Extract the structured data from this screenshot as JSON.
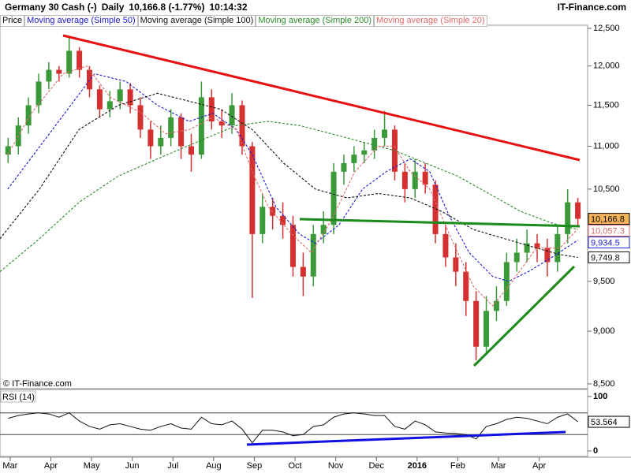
{
  "header": {
    "instrument": "Germany 30 Cash (-)",
    "period": "Daily",
    "quote": "10,166.8 (-1.77%)",
    "time": "10:14:32",
    "brand": "IT-Finance.com"
  },
  "watermark": "© IT-Finance.com",
  "chart_data": [
    {
      "type": "candlestick",
      "name": "Price",
      "up_color": "#3a9a3a",
      "down_color": "#d43030",
      "log": true,
      "ylim": [
        8456,
        12543
      ],
      "yticks": [
        {
          "value": 12500,
          "label": "12,500"
        },
        {
          "value": 12000,
          "label": "12,000"
        },
        {
          "value": 11500,
          "label": "11,500"
        },
        {
          "value": 11000,
          "label": "11,000"
        },
        {
          "value": 10500,
          "label": "10,500"
        },
        {
          "value": 9500,
          "label": "9,500"
        },
        {
          "value": 9000,
          "label": "9,000"
        },
        {
          "value": 8500,
          "label": "8,500"
        }
      ],
      "xlim": [
        -0.25,
        14.19
      ],
      "x": [
        -0.05,
        0.2,
        0.45,
        0.7,
        0.95,
        1.2,
        1.45,
        1.7,
        1.95,
        2.2,
        2.45,
        2.7,
        2.95,
        3.2,
        3.45,
        3.7,
        3.95,
        4.2,
        4.45,
        4.7,
        4.95,
        5.2,
        5.45,
        5.7,
        5.95,
        6.2,
        6.45,
        6.7,
        6.95,
        7.2,
        7.45,
        7.7,
        7.95,
        8.2,
        8.45,
        8.7,
        8.95,
        9.2,
        9.45,
        9.7,
        9.95,
        10.2,
        10.45,
        10.7,
        10.95,
        11.2,
        11.45,
        11.7,
        11.95,
        12.2,
        12.45,
        12.7,
        12.95,
        13.2,
        13.45,
        13.7,
        13.95
      ],
      "open": [
        10900,
        11000,
        11250,
        11500,
        11800,
        11950,
        11900,
        12200,
        11950,
        11700,
        11450,
        11550,
        11700,
        11500,
        11200,
        11000,
        11100,
        11350,
        11000,
        10900,
        11600,
        11300,
        11250,
        11500,
        11000,
        10000,
        10300,
        10200,
        10100,
        9650,
        9550,
        10000,
        10100,
        10700,
        10800,
        10900,
        10950,
        11100,
        11200,
        10700,
        10500,
        10700,
        10550,
        10000,
        9750,
        9600,
        9300,
        8850,
        9200,
        9300,
        9700,
        9800,
        9900,
        9850,
        9700,
        10000,
        10350
      ],
      "high": [
        11100,
        11350,
        11600,
        11900,
        12050,
        12000,
        12390,
        12250,
        12000,
        11750,
        11680,
        11800,
        11780,
        11600,
        11300,
        11250,
        11450,
        11400,
        11150,
        11800,
        11700,
        11450,
        11650,
        11560,
        11050,
        10450,
        10400,
        10350,
        10200,
        9800,
        10100,
        10250,
        10800,
        10900,
        11000,
        11050,
        11200,
        11430,
        11250,
        10800,
        10850,
        10800,
        10600,
        10100,
        9900,
        9700,
        9400,
        9350,
        9450,
        9800,
        9950,
        10050,
        10000,
        9950,
        10100,
        10500,
        10400
      ],
      "low": [
        10800,
        10900,
        11150,
        11400,
        11700,
        11800,
        11850,
        11850,
        11600,
        11350,
        11350,
        11450,
        11400,
        11100,
        10850,
        10900,
        11000,
        10850,
        10700,
        10850,
        11200,
        11100,
        11150,
        10900,
        9330,
        9900,
        10050,
        9950,
        9550,
        9350,
        9450,
        9900,
        10000,
        10550,
        10700,
        10800,
        10850,
        11000,
        10600,
        10350,
        10400,
        10450,
        9900,
        9650,
        9450,
        9150,
        8720,
        8800,
        9100,
        9250,
        9600,
        9700,
        9700,
        9550,
        9600,
        9900,
        10080
      ],
      "close": [
        11000,
        11250,
        11500,
        11800,
        11950,
        11900,
        12200,
        11950,
        11700,
        11450,
        11550,
        11700,
        11500,
        11200,
        11000,
        11100,
        11350,
        11000,
        10900,
        11600,
        11300,
        11250,
        11500,
        11000,
        10000,
        10300,
        10200,
        10100,
        9650,
        9550,
        10000,
        10100,
        10700,
        10800,
        10900,
        10950,
        11100,
        11200,
        10700,
        10500,
        10700,
        10550,
        10000,
        9750,
        9600,
        9300,
        8850,
        9200,
        9300,
        9700,
        9800,
        9900,
        9850,
        9700,
        10000,
        10350,
        10166.8
      ],
      "last_label": "10,166.8",
      "last_value": 10166.8,
      "series": [
        {
          "name": "Moving average (Simple 50)",
          "color": "#1a1ad0",
          "x": [
            -0.06,
            2.07,
            2.85,
            3.62,
            4.4,
            4.98,
            5.56,
            5.95,
            6.53,
            7.11,
            7.5,
            8.08,
            8.66,
            9.24,
            9.83,
            10.31,
            10.79,
            11.28,
            11.86,
            12.25,
            12.73,
            13.31,
            13.95
          ],
          "values": [
            10500,
            11900,
            11800,
            11500,
            11300,
            11400,
            11200,
            10900,
            10300,
            10000,
            9900,
            10100,
            10500,
            10700,
            10850,
            10700,
            10200,
            9800,
            9550,
            9500,
            9600,
            9750,
            9934.5
          ],
          "last_label": "9,934.5"
        },
        {
          "name": "Moving average (Simple 100)",
          "color": "#111111",
          "x": [
            -0.25,
            0.72,
            1.69,
            2.66,
            3.62,
            4.4,
            5.17,
            5.95,
            6.72,
            7.5,
            8.28,
            9.05,
            9.83,
            10.6,
            11.38,
            12.15,
            12.93,
            13.51,
            13.95
          ],
          "values": [
            9950,
            10500,
            11200,
            11500,
            11650,
            11550,
            11450,
            11200,
            10800,
            10500,
            10400,
            10450,
            10400,
            10250,
            10050,
            9950,
            9850,
            9780,
            9749.8
          ],
          "last_label": "9,749.8"
        },
        {
          "name": "Moving average (Simple 200)",
          "color": "#2a8a2a",
          "x": [
            -0.25,
            0.72,
            1.69,
            2.66,
            3.62,
            4.59,
            5.56,
            6.34,
            7.11,
            7.89,
            8.66,
            9.44,
            10.21,
            10.99,
            11.76,
            12.54,
            13.31,
            13.95
          ],
          "values": [
            9600,
            9950,
            10350,
            10650,
            10850,
            11050,
            11250,
            11300,
            11250,
            11150,
            11050,
            10950,
            10800,
            10650,
            10450,
            10250,
            10120,
            10050
          ]
        },
        {
          "name": "Moving average (Simple 20)",
          "color": "#e06a6a",
          "x": [
            -0.06,
            0.52,
            1.3,
            1.88,
            2.46,
            3.24,
            3.82,
            4.4,
            4.98,
            5.56,
            5.95,
            6.34,
            6.92,
            7.4,
            7.89,
            8.47,
            9.05,
            9.44,
            9.83,
            10.31,
            10.79,
            11.38,
            11.86,
            12.34,
            12.93,
            13.51,
            13.95
          ],
          "values": [
            10900,
            11400,
            11900,
            12000,
            11600,
            11400,
            11150,
            11200,
            11350,
            11200,
            10700,
            10300,
            10000,
            9800,
            10150,
            10700,
            11000,
            11000,
            10700,
            10500,
            10000,
            9450,
            9250,
            9500,
            9850,
            9850,
            10057.3
          ],
          "last_label": "10,057.3"
        }
      ]
    },
    {
      "type": "line",
      "title": "RSI (14)",
      "color": "#111111",
      "ylim": [
        0,
        100
      ],
      "yticks": [
        100,
        0
      ],
      "levels": [
        70,
        30
      ],
      "xlim": [
        -0.25,
        14.19
      ],
      "xticks": [
        {
          "value": 0,
          "label": "Mar"
        },
        {
          "value": 1,
          "label": "Apr"
        },
        {
          "value": 2,
          "label": "May"
        },
        {
          "value": 3,
          "label": "Jun"
        },
        {
          "value": 4,
          "label": "Jul"
        },
        {
          "value": 5,
          "label": "Aug"
        },
        {
          "value": 6,
          "label": "Sep"
        },
        {
          "value": 7,
          "label": "Oct"
        },
        {
          "value": 8,
          "label": "Nov"
        },
        {
          "value": 9,
          "label": "Dec"
        },
        {
          "value": 10,
          "label": "2016"
        },
        {
          "value": 11,
          "label": "Feb"
        },
        {
          "value": 12,
          "label": "Mar"
        },
        {
          "value": 13,
          "label": "Apr"
        }
      ],
      "x": [
        -0.05,
        0.2,
        0.45,
        0.7,
        0.95,
        1.2,
        1.45,
        1.7,
        1.95,
        2.2,
        2.45,
        2.7,
        2.95,
        3.2,
        3.45,
        3.7,
        3.95,
        4.2,
        4.45,
        4.7,
        4.95,
        5.2,
        5.45,
        5.7,
        5.95,
        6.2,
        6.45,
        6.7,
        6.95,
        7.2,
        7.45,
        7.7,
        7.95,
        8.2,
        8.45,
        8.7,
        8.95,
        9.2,
        9.45,
        9.7,
        9.95,
        10.2,
        10.45,
        10.7,
        10.95,
        11.2,
        11.45,
        11.7,
        11.95,
        12.2,
        12.45,
        12.7,
        12.95,
        13.2,
        13.45,
        13.7,
        13.95
      ],
      "values": [
        60,
        65,
        68,
        70,
        68,
        62,
        70,
        55,
        45,
        40,
        48,
        50,
        45,
        40,
        38,
        45,
        50,
        42,
        40,
        62,
        50,
        48,
        55,
        40,
        15,
        38,
        38,
        35,
        28,
        30,
        45,
        48,
        62,
        68,
        70,
        68,
        65,
        65,
        45,
        40,
        55,
        48,
        35,
        33,
        32,
        30,
        22,
        45,
        50,
        58,
        62,
        60,
        55,
        50,
        62,
        68,
        53.564
      ],
      "last_label": "53.564"
    }
  ]
}
